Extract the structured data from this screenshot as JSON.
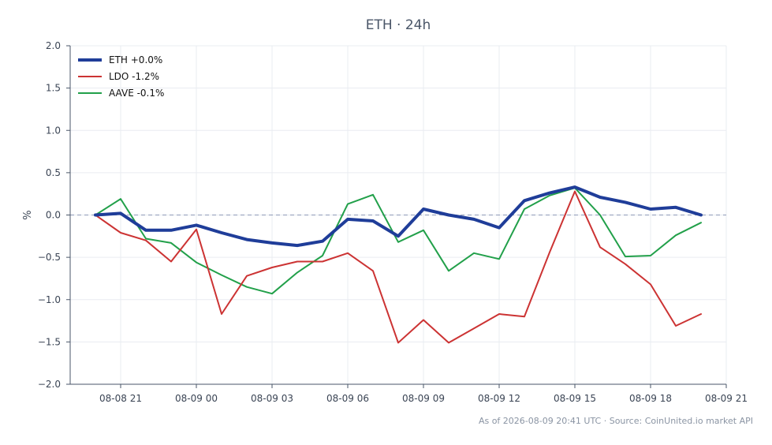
{
  "chart_data": {
    "type": "line",
    "title": "ETH · 24h",
    "xlabel": "",
    "ylabel": "%",
    "ylim": [
      -2.0,
      2.0
    ],
    "xlim": [
      "2026-08-08 19:00",
      "2026-08-09 21:00"
    ],
    "yticks": [
      2.0,
      1.5,
      1.0,
      0.5,
      0.0,
      -0.5,
      -1.0,
      -1.5,
      -2.0
    ],
    "ytick_labels": [
      "2.0",
      "1.5",
      "1.0",
      "0.5",
      "0.0",
      "−0.5",
      "−1.0",
      "−1.5",
      "−2.0"
    ],
    "xticks": [
      "2026-08-08 21:00",
      "2026-08-09 00:00",
      "2026-08-09 03:00",
      "2026-08-09 06:00",
      "2026-08-09 09:00",
      "2026-08-09 12:00",
      "2026-08-09 15:00",
      "2026-08-09 18:00",
      "2026-08-09 21:00"
    ],
    "xtick_labels": [
      "08-08 21",
      "08-09 00",
      "08-09 03",
      "08-09 06",
      "08-09 09",
      "08-09 12",
      "08-09 15",
      "08-09 18",
      "08-09 21"
    ],
    "x": [
      "2026-08-08 20:00",
      "2026-08-08 21:00",
      "2026-08-08 22:00",
      "2026-08-08 23:00",
      "2026-08-09 00:00",
      "2026-08-09 01:00",
      "2026-08-09 02:00",
      "2026-08-09 03:00",
      "2026-08-09 04:00",
      "2026-08-09 05:00",
      "2026-08-09 06:00",
      "2026-08-09 07:00",
      "2026-08-09 08:00",
      "2026-08-09 09:00",
      "2026-08-09 10:00",
      "2026-08-09 11:00",
      "2026-08-09 12:00",
      "2026-08-09 13:00",
      "2026-08-09 14:00",
      "2026-08-09 15:00",
      "2026-08-09 16:00",
      "2026-08-09 17:00",
      "2026-08-09 18:00",
      "2026-08-09 19:00",
      "2026-08-09 20:00"
    ],
    "grid": true,
    "zero_line": true,
    "legend_position": "top-left",
    "series": [
      {
        "name": "ETH +0.0%",
        "color": "#1f3d99",
        "values": [
          0.0,
          0.02,
          -0.18,
          -0.18,
          -0.12,
          -0.21,
          -0.29,
          -0.33,
          -0.36,
          -0.31,
          -0.05,
          -0.07,
          -0.25,
          0.07,
          0.0,
          -0.05,
          -0.15,
          0.17,
          0.26,
          0.33,
          0.21,
          0.15,
          0.07,
          0.09,
          0.0
        ]
      },
      {
        "name": "LDO -1.2%",
        "color": "#cc3333",
        "values": [
          0.0,
          -0.21,
          -0.3,
          -0.55,
          -0.17,
          -1.17,
          -0.72,
          -0.62,
          -0.55,
          -0.55,
          -0.45,
          -0.66,
          -1.51,
          -1.24,
          -1.51,
          -1.34,
          -1.17,
          -1.2,
          -0.44,
          0.28,
          -0.38,
          -0.58,
          -0.82,
          -1.31,
          -1.17
        ]
      },
      {
        "name": "AAVE -0.1%",
        "color": "#22a04a",
        "values": [
          0.0,
          0.19,
          -0.28,
          -0.33,
          -0.56,
          -0.71,
          -0.85,
          -0.93,
          -0.68,
          -0.48,
          0.13,
          0.24,
          -0.32,
          -0.18,
          -0.66,
          -0.45,
          -0.52,
          0.07,
          0.23,
          0.32,
          0.0,
          -0.49,
          -0.48,
          -0.24,
          -0.09
        ]
      }
    ],
    "footer": "As of 2026-08-09 20:41 UTC · Source: CoinUnited.io market API"
  }
}
